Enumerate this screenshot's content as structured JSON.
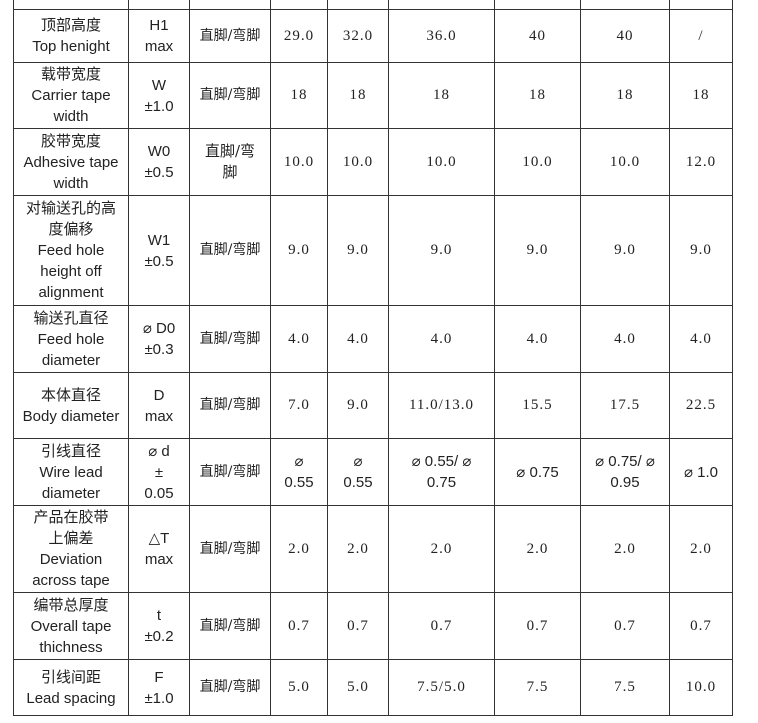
{
  "rows": [
    {
      "zh": "顶部高度",
      "en": "Top henight",
      "sym": "H1",
      "tol": "max",
      "type": "直脚/弯脚",
      "v": [
        "29.0",
        "32.0",
        "36.0",
        "40",
        "40",
        "/"
      ]
    },
    {
      "zh": "载带宽度",
      "en": "Carrier tape width",
      "sym": "W",
      "tol": "±1.0",
      "type": "直脚/弯脚",
      "v": [
        "18",
        "18",
        "18",
        "18",
        "18",
        "18"
      ]
    },
    {
      "zh": "胶带宽度",
      "en": "Adhesive tape width",
      "sym": "W0",
      "tol": "±0.5",
      "type": "直脚/弯脚",
      "v": [
        "10.0",
        "10.0",
        "10.0",
        "10.0",
        "10.0",
        "12.0"
      ]
    },
    {
      "zh": "对输送孔的高度偏移",
      "en": "Feed hole height off alignment",
      "sym": "W1",
      "tol": "±0.5",
      "type": "直脚/弯脚",
      "v": [
        "9.0",
        "9.0",
        "9.0",
        "9.0",
        "9.0",
        "9.0"
      ]
    },
    {
      "zh": "输送孔直径",
      "en": "Feed hole diameter",
      "sym": "⌀ D0",
      "tol": "±0.3",
      "type": "直脚/弯脚",
      "v": [
        "4.0",
        "4.0",
        "4.0",
        "4.0",
        "4.0",
        "4.0"
      ]
    },
    {
      "zh": "本体直径",
      "en": "Body diameter",
      "sym": "D",
      "tol": "max",
      "type": "直脚/弯脚",
      "v": [
        "7.0",
        "9.0",
        "11.0/13.0",
        "15.5",
        "17.5",
        "22.5"
      ]
    },
    {
      "zh": "引线直径",
      "en": "Wire lead diameter",
      "sym": "⌀ d",
      "tol": "± 0.05",
      "type": "直脚/弯脚",
      "v": [
        "⌀ 0.55",
        "⌀ 0.55",
        "⌀ 0.55/ ⌀ 0.75",
        "⌀ 0.75",
        "⌀ 0.75/ ⌀ 0.95",
        "⌀ 1.0"
      ]
    },
    {
      "zh": "产品在胶带上偏差",
      "en": "Deviation across tape",
      "sym": "△T",
      "tol": "max",
      "type": "直脚/弯脚",
      "v": [
        "2.0",
        "2.0",
        "2.0",
        "2.0",
        "2.0",
        "2.0"
      ]
    },
    {
      "zh": "编带总厚度",
      "en": "Overall tape thichness",
      "sym": "t",
      "tol": "±0.2",
      "type": "直脚/弯脚",
      "v": [
        "0.7",
        "0.7",
        "0.7",
        "0.7",
        "0.7",
        "0.7"
      ]
    },
    {
      "zh": "引线间距",
      "en": "Lead spacing",
      "sym": "F",
      "tol": "±1.0",
      "type": "直脚/弯脚",
      "v": [
        "5.0",
        "5.0",
        "7.5/5.0",
        "7.5",
        "7.5",
        "10.0"
      ]
    }
  ]
}
